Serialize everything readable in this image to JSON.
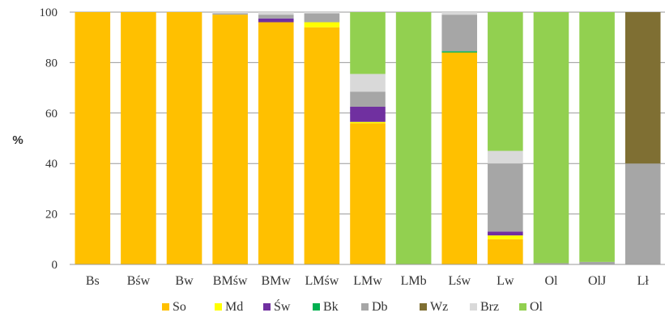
{
  "chart_data": {
    "type": "bar",
    "stacked": true,
    "ylabel": "%",
    "ylim": [
      0,
      100
    ],
    "yticks": [
      0,
      20,
      40,
      60,
      80,
      100
    ],
    "grid": true,
    "legend_position": "bottom",
    "categories": [
      "Bs",
      "Bśw",
      "Bw",
      "BMśw",
      "BMw",
      "LMśw",
      "LMw",
      "LMb",
      "Lśw",
      "Lw",
      "Ol",
      "OlJ",
      "Lł"
    ],
    "series": [
      {
        "name": "So",
        "color": "#FFC000",
        "values": [
          100,
          100,
          100,
          99,
          96,
          94,
          56,
          0,
          84,
          10,
          0,
          0,
          0
        ]
      },
      {
        "name": "Md",
        "color": "#FFFF00",
        "values": [
          0,
          0,
          0,
          0,
          0,
          2,
          0.5,
          0,
          0,
          1.5,
          0,
          0,
          0
        ]
      },
      {
        "name": "Św",
        "color": "#7030A0",
        "values": [
          0,
          0,
          0,
          0,
          1.5,
          0,
          6,
          0,
          0,
          1.5,
          0,
          0,
          0
        ]
      },
      {
        "name": "Bk",
        "color": "#00B050",
        "values": [
          0,
          0,
          0,
          0,
          0,
          0,
          0,
          0,
          0.5,
          0,
          0,
          0,
          0
        ]
      },
      {
        "name": "Db",
        "color": "#A6A6A6",
        "values": [
          0,
          0,
          0,
          0.5,
          1.5,
          3.5,
          6,
          0,
          14.5,
          27,
          0.5,
          1,
          40
        ]
      },
      {
        "name": "Wz",
        "color": "#7F6F33",
        "values": [
          0,
          0,
          0,
          0,
          0,
          0,
          0,
          0,
          0,
          0,
          0,
          0,
          60
        ]
      },
      {
        "name": "Brz",
        "color": "#D9D9D9",
        "values": [
          0,
          0,
          0,
          0.5,
          1,
          0.5,
          7,
          0,
          1,
          5,
          0,
          0,
          0
        ]
      },
      {
        "name": "Ol",
        "color": "#92D050",
        "values": [
          0,
          0,
          0,
          0,
          0,
          0,
          24.5,
          100,
          0,
          55,
          99.5,
          99,
          0
        ]
      }
    ]
  }
}
